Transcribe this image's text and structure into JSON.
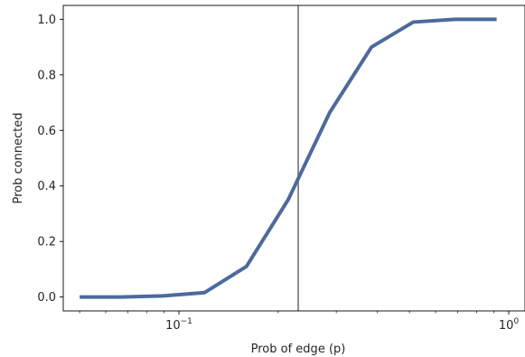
{
  "chart_data": {
    "type": "line",
    "xlabel": "Prob of edge (p)",
    "ylabel": "Prob connected",
    "x_scale": "log",
    "xlim": [
      0.0446,
      1.12
    ],
    "ylim": [
      -0.05,
      1.05
    ],
    "x_ticks": [
      {
        "value": 0.1,
        "base": "10",
        "exp": "−1"
      },
      {
        "value": 1,
        "base": "10",
        "exp": "0"
      }
    ],
    "y_ticks": [
      {
        "value": 0.0,
        "label": "0.0"
      },
      {
        "value": 0.2,
        "label": "0.2"
      },
      {
        "value": 0.4,
        "label": "0.4"
      },
      {
        "value": 0.6,
        "label": "0.6"
      },
      {
        "value": 0.8,
        "label": "0.8"
      },
      {
        "value": 1.0,
        "label": "1.0"
      }
    ],
    "grid": false,
    "vline": {
      "x": 0.23,
      "color": "#808080"
    },
    "series": [
      {
        "color": "#4c6a9c",
        "x": [
          0.05,
          0.0669,
          0.0895,
          0.1197,
          0.1602,
          0.2143,
          0.2867,
          0.3836,
          0.5132,
          0.6867,
          0.9188
        ],
        "y": [
          0.0,
          0.0,
          0.004,
          0.016,
          0.11,
          0.35,
          0.665,
          0.9,
          0.99,
          1.0,
          1.0
        ]
      }
    ]
  }
}
